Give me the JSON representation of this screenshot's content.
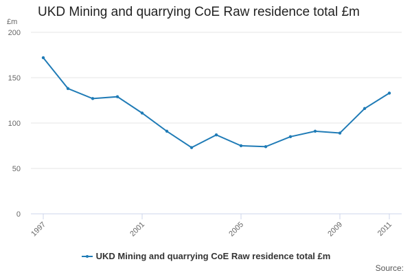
{
  "chart_data": {
    "type": "line",
    "title": "UKD Mining and quarrying CoE Raw residence total £m",
    "ylabel": "£m",
    "xlabel": "",
    "ylim": [
      0,
      200
    ],
    "yticks": [
      0,
      50,
      100,
      150,
      200
    ],
    "xlim": [
      1997,
      2011
    ],
    "x": [
      1997,
      1998,
      1999,
      2000,
      2001,
      2002,
      2003,
      2004,
      2005,
      2006,
      2007,
      2008,
      2009,
      2010,
      2011
    ],
    "xtick_labels": [
      "1997",
      "2001",
      "2005",
      "2009",
      "2011"
    ],
    "series": [
      {
        "name": "UKD Mining and quarrying CoE Raw residence total £m",
        "color": "#1f7bb6",
        "values": [
          172,
          138,
          127,
          129,
          111,
          91,
          73,
          87,
          75,
          74,
          85,
          91,
          89,
          116,
          133
        ]
      }
    ],
    "legend": "bottom-center",
    "grid": true
  },
  "footer": {
    "source": "Source:"
  }
}
